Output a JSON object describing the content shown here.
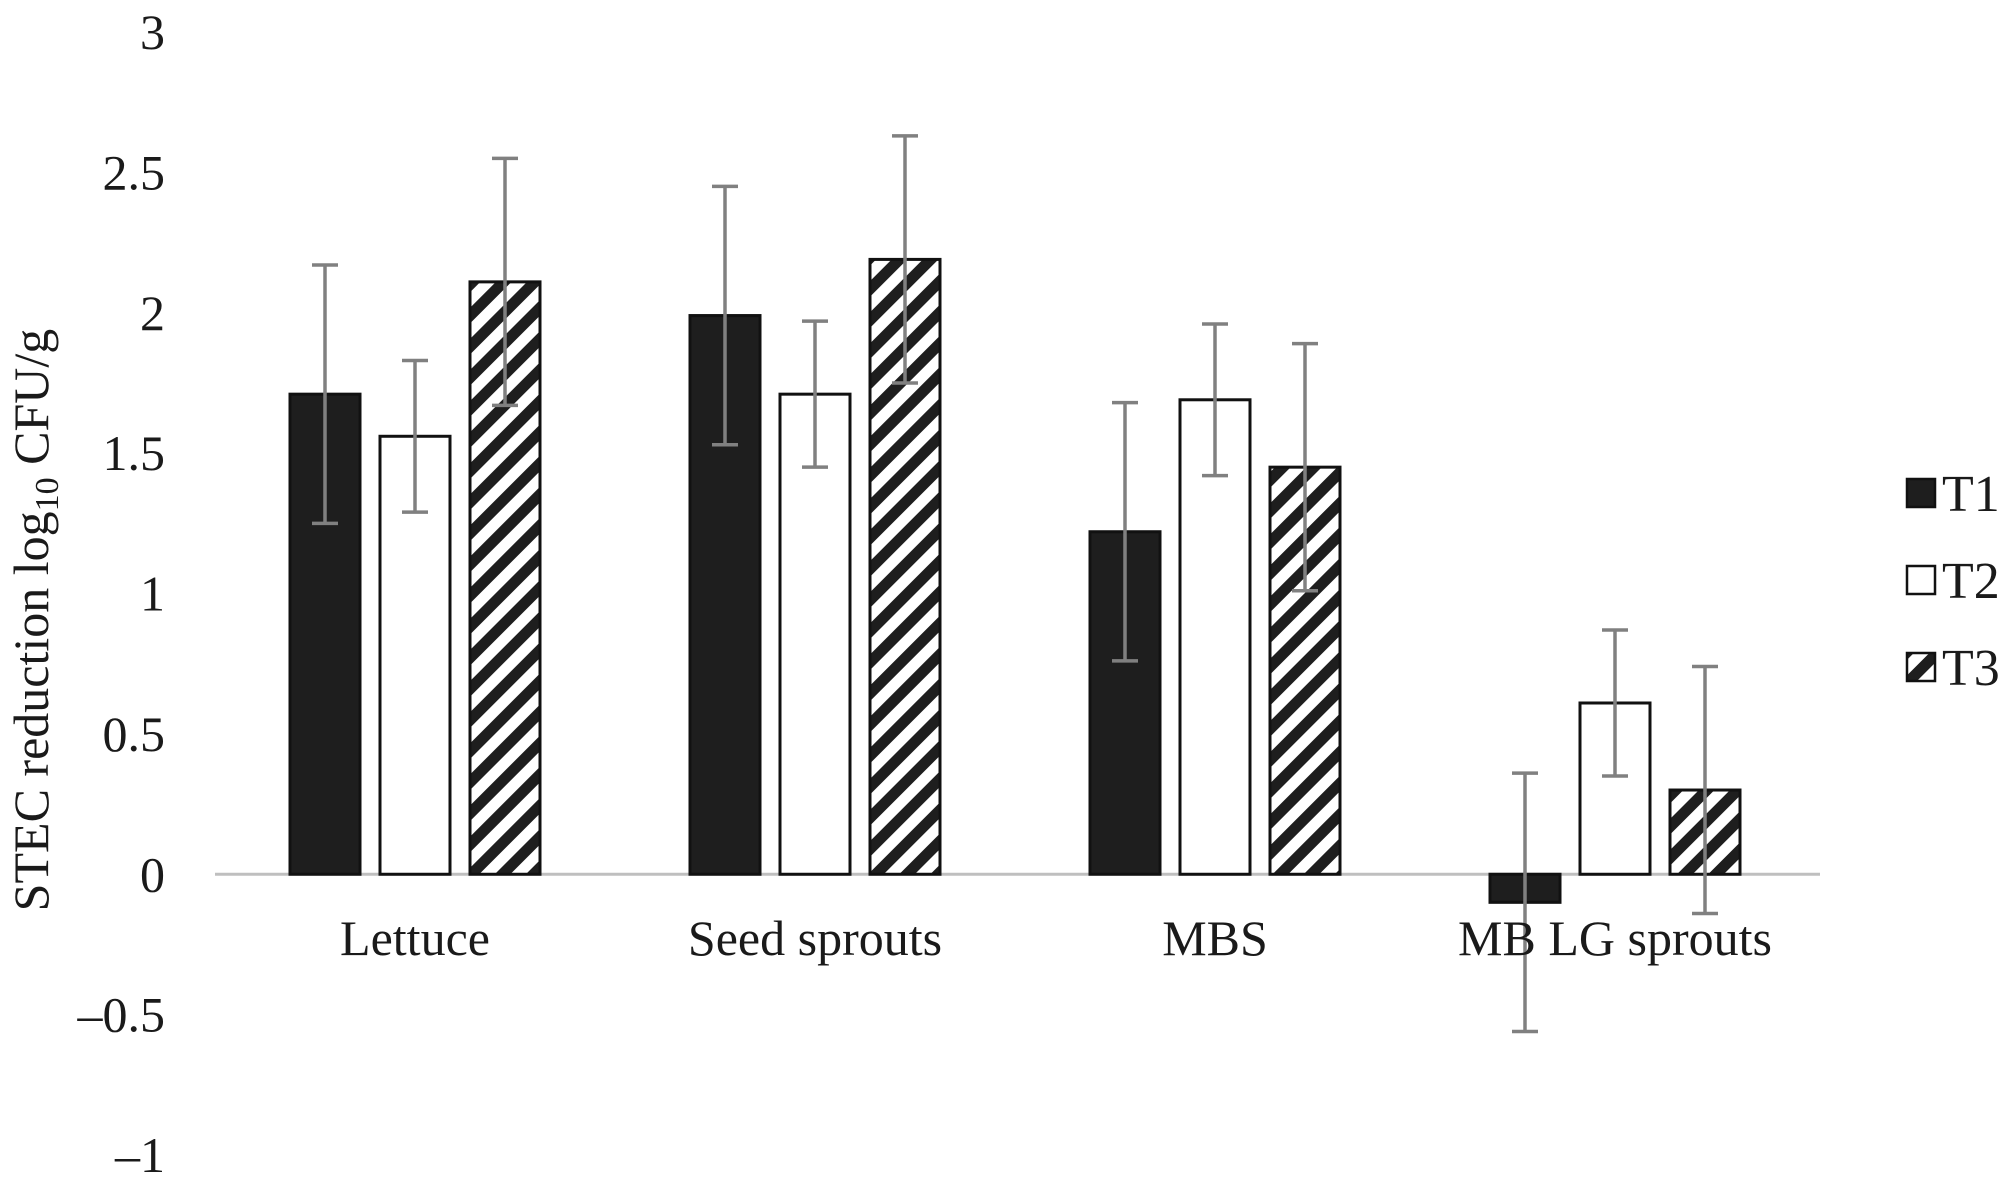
{
  "chart_data": {
    "type": "bar",
    "title": "",
    "ylabel": {
      "prefix": "STEC reduction log",
      "subscript": "10",
      "suffix": " CFU/g"
    },
    "xlabel": "",
    "ylim": [
      -1,
      3
    ],
    "yticks": [
      "3",
      "2.5",
      "2",
      "1.5",
      "1",
      "0.5",
      "0",
      "–0.5",
      "–1"
    ],
    "ytick_values": [
      3,
      2.5,
      2,
      1.5,
      1,
      0.5,
      0,
      -0.5,
      -1
    ],
    "categories": [
      "Lettuce",
      "Seed sprouts",
      "MBS",
      "MB LG sprouts"
    ],
    "series": [
      {
        "name": "T1",
        "fill": "solid-black",
        "color": "#1e1e1e",
        "values": [
          1.71,
          1.99,
          1.22,
          -0.1
        ],
        "error": [
          0.46,
          0.46,
          0.46,
          0.46
        ]
      },
      {
        "name": "T2",
        "fill": "white",
        "color": "#ffffff",
        "values": [
          1.56,
          1.71,
          1.69,
          0.61
        ],
        "error": [
          0.27,
          0.26,
          0.27,
          0.26
        ]
      },
      {
        "name": "T3",
        "fill": "diagonal-stripes",
        "color": "#1e1e1e",
        "values": [
          2.11,
          2.19,
          1.45,
          0.3
        ],
        "error": [
          0.44,
          0.44,
          0.44,
          0.44
        ]
      }
    ],
    "error_bar_color": "#808080",
    "zero_line_color": "#bfbfbf",
    "grid": false,
    "legend_position": "right"
  }
}
